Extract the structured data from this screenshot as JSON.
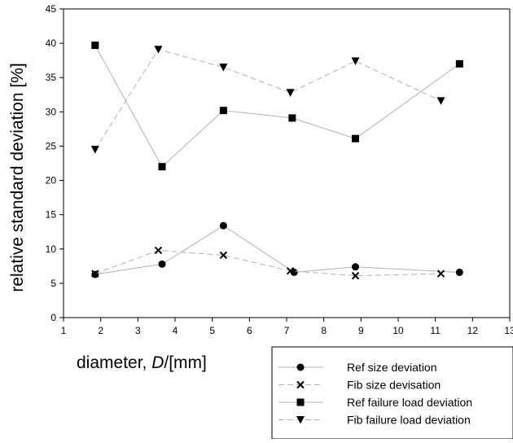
{
  "chart_data": {
    "type": "line",
    "title": "",
    "xlabel_prefix": "diameter, ",
    "xlabel_symbol": "D",
    "xlabel_unit": "/[mm]",
    "ylabel": "relative standard deviation [%]",
    "xlim": [
      1,
      13
    ],
    "ylim": [
      0,
      45
    ],
    "x_ticks": [
      1,
      2,
      3,
      4,
      5,
      6,
      7,
      8,
      9,
      10,
      11,
      12,
      13
    ],
    "y_ticks": [
      0,
      5,
      10,
      15,
      20,
      25,
      30,
      35,
      40,
      45
    ],
    "grid": false,
    "legend_position": "bottom-right, outside plot",
    "series": [
      {
        "name": "Ref size deviation",
        "marker": "circle",
        "line": "solid",
        "color": "#000000",
        "line_color": "#b0b0b0",
        "x": [
          1.85,
          3.65,
          5.3,
          7.2,
          8.85,
          11.65
        ],
        "y": [
          6.3,
          7.8,
          13.4,
          6.6,
          7.4,
          6.6
        ]
      },
      {
        "name": "Fib size devisation",
        "marker": "x",
        "line": "dashed",
        "color": "#000000",
        "line_color": "#b0b0b0",
        "x": [
          1.85,
          3.55,
          5.3,
          7.1,
          8.85,
          11.15
        ],
        "y": [
          6.4,
          9.8,
          9.1,
          6.8,
          6.1,
          6.4
        ]
      },
      {
        "name": "Ref failure load deviation",
        "marker": "square",
        "line": "solid",
        "color": "#000000",
        "line_color": "#b0b0b0",
        "x": [
          1.85,
          3.65,
          5.3,
          7.15,
          8.85,
          11.65
        ],
        "y": [
          39.7,
          22.0,
          30.2,
          29.1,
          26.1,
          37.0
        ]
      },
      {
        "name": "Fib failure load deviation",
        "marker": "triangle-down",
        "line": "dashed",
        "color": "#000000",
        "line_color": "#b0b0b0",
        "x": [
          1.85,
          3.55,
          5.3,
          7.1,
          8.85,
          11.15
        ],
        "y": [
          24.5,
          39.1,
          36.5,
          32.8,
          37.4,
          31.6
        ]
      }
    ]
  }
}
